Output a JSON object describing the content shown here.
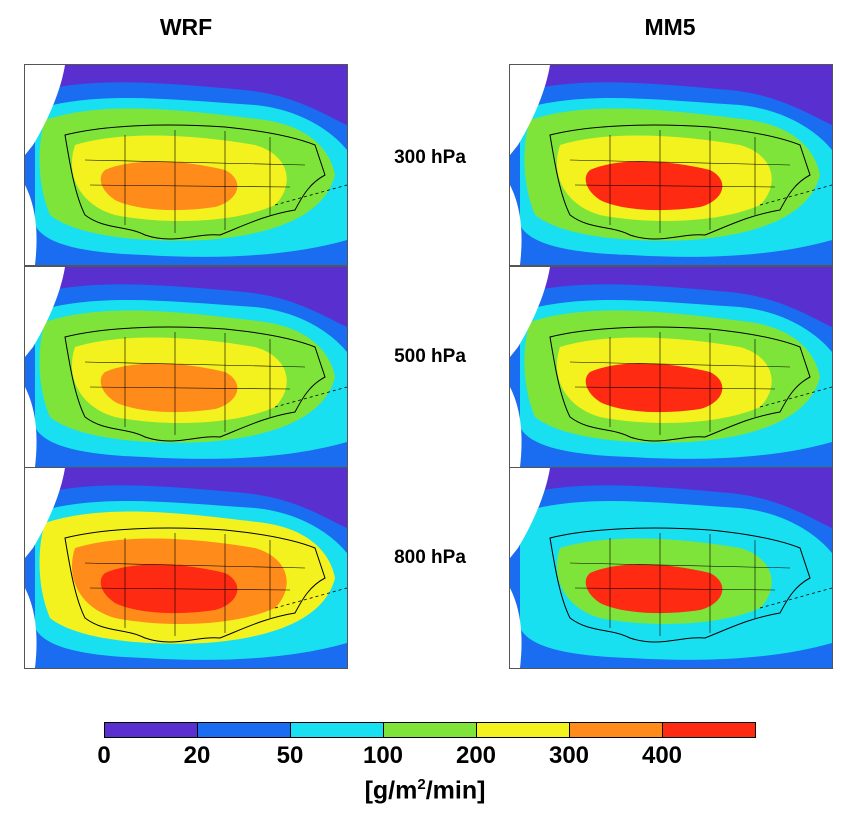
{
  "columns": [
    {
      "title": "WRF"
    },
    {
      "title": "MM5"
    }
  ],
  "rows": [
    {
      "label": "300 hPa"
    },
    {
      "label": "500 hPa"
    },
    {
      "label": "800 hPa"
    }
  ],
  "colorbar": {
    "ticks": [
      "0",
      "20",
      "50",
      "100",
      "200",
      "300",
      "400"
    ],
    "colors": [
      "#5a2fd0",
      "#1a6cf0",
      "#19e0f0",
      "#7fe43a",
      "#f4f21e",
      "#ff8c1a",
      "#ff2a12"
    ],
    "units_prefix": "[g/m",
    "units_sup": "2",
    "units_suffix": "/min]"
  },
  "map_colors": {
    "low": "#5a2fd0",
    "blue": "#1a6cf0",
    "cyan": "#19e0f0",
    "green": "#7fe43a",
    "yellow": "#f4f21e",
    "orange": "#ff8c1a",
    "red": "#ff2a12",
    "land_mask": "#ffffff",
    "boundary": "#000000"
  }
}
